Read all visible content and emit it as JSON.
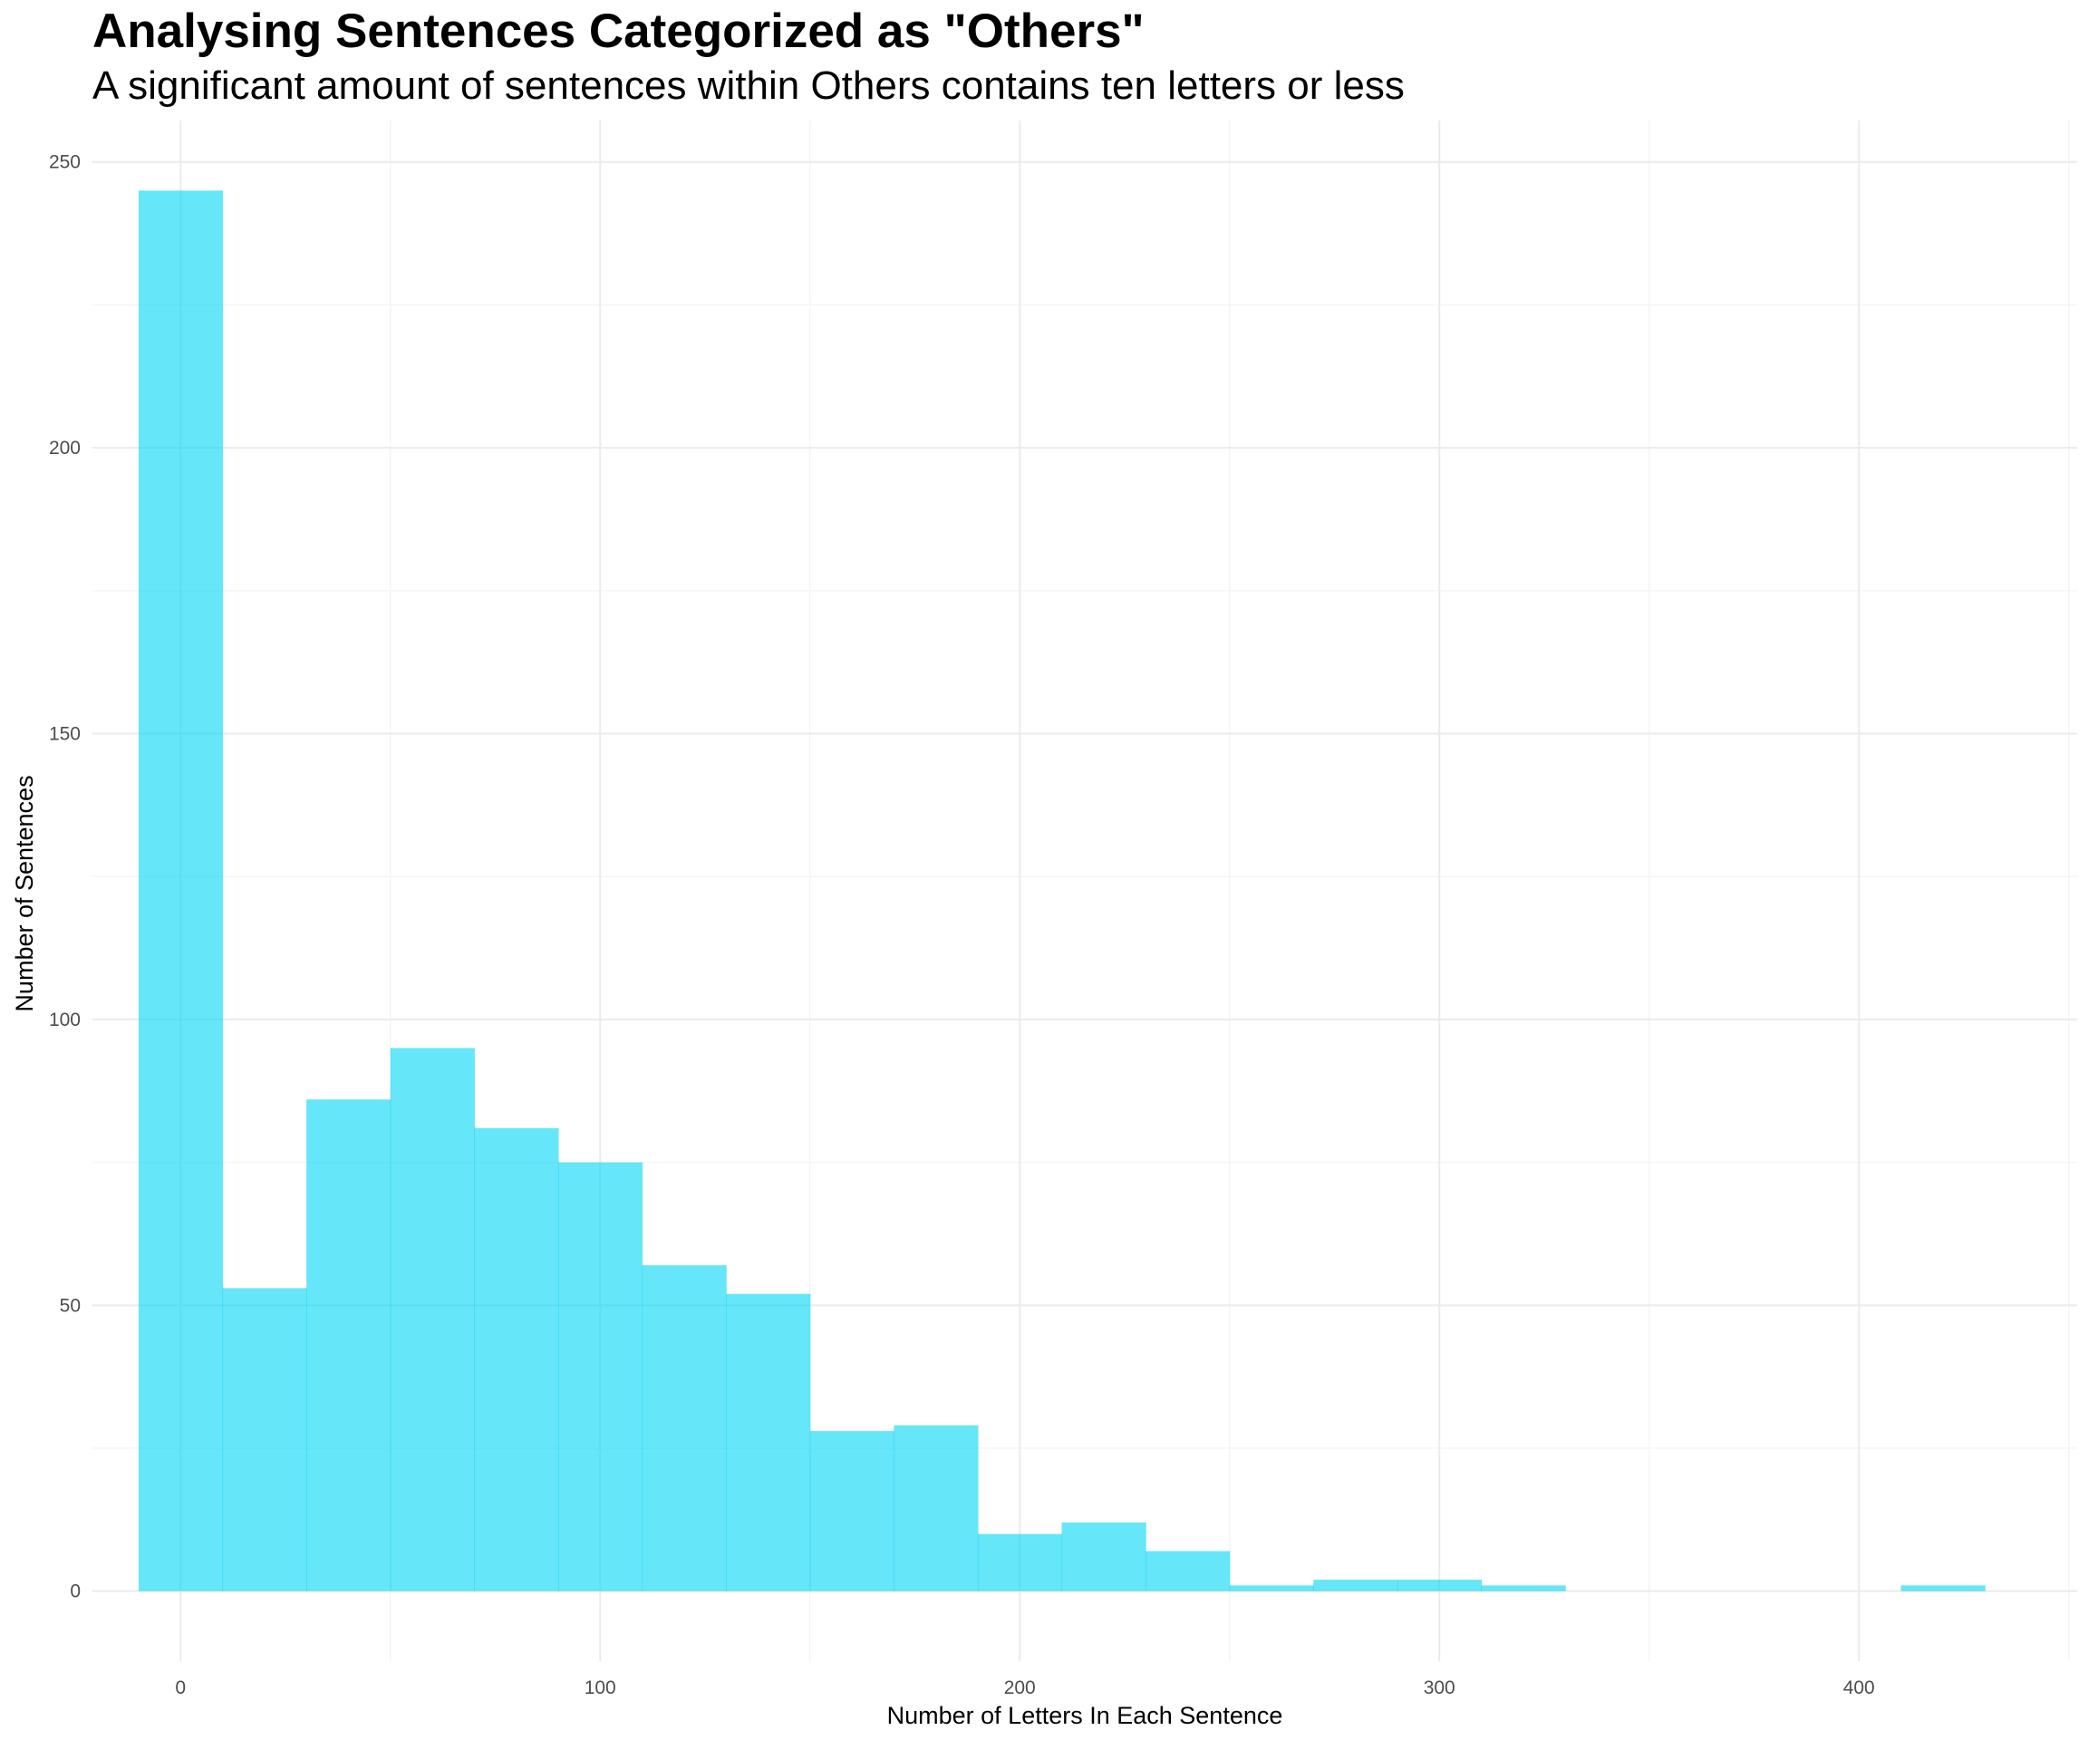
{
  "chart_data": {
    "type": "bar",
    "title": "Analysing Sentences Categorized as \"Others\"",
    "subtitle": "A significant amount of sentences within Others contains ten letters or less",
    "xlabel": "Number of Letters In Each Sentence",
    "ylabel": "Number of Sentences",
    "bin_width": 20,
    "bins": [
      {
        "x0": -10,
        "x1": 10,
        "count": 245
      },
      {
        "x0": 10,
        "x1": 30,
        "count": 53
      },
      {
        "x0": 30,
        "x1": 50,
        "count": 86
      },
      {
        "x0": 50,
        "x1": 70,
        "count": 95
      },
      {
        "x0": 70,
        "x1": 90,
        "count": 81
      },
      {
        "x0": 90,
        "x1": 110,
        "count": 75
      },
      {
        "x0": 110,
        "x1": 130,
        "count": 57
      },
      {
        "x0": 130,
        "x1": 150,
        "count": 52
      },
      {
        "x0": 150,
        "x1": 170,
        "count": 28
      },
      {
        "x0": 170,
        "x1": 190,
        "count": 29
      },
      {
        "x0": 190,
        "x1": 210,
        "count": 10
      },
      {
        "x0": 210,
        "x1": 230,
        "count": 12
      },
      {
        "x0": 230,
        "x1": 250,
        "count": 7
      },
      {
        "x0": 250,
        "x1": 270,
        "count": 1
      },
      {
        "x0": 270,
        "x1": 290,
        "count": 2
      },
      {
        "x0": 290,
        "x1": 310,
        "count": 2
      },
      {
        "x0": 310,
        "x1": 330,
        "count": 1
      },
      {
        "x0": 330,
        "x1": 350,
        "count": 0
      },
      {
        "x0": 350,
        "x1": 370,
        "count": 0
      },
      {
        "x0": 370,
        "x1": 390,
        "count": 0
      },
      {
        "x0": 390,
        "x1": 410,
        "count": 0
      },
      {
        "x0": 410,
        "x1": 430,
        "count": 1
      }
    ],
    "x_ticks": [
      0,
      100,
      200,
      300,
      400
    ],
    "x_tick_labels": [
      "0",
      "100",
      "200",
      "300",
      "400"
    ],
    "y_ticks": [
      0,
      50,
      100,
      150,
      200,
      250
    ],
    "y_tick_labels": [
      "0",
      "50",
      "100",
      "150",
      "200",
      "250"
    ],
    "xlim": [
      -21,
      452
    ],
    "ylim": [
      -12.25,
      257.25
    ],
    "grid": true,
    "legend": "none",
    "bar_color": "#00d5f5",
    "bar_opacity": 0.6,
    "grid_major_color": "#ebebeb",
    "grid_minor_color": "#f5f5f5"
  }
}
